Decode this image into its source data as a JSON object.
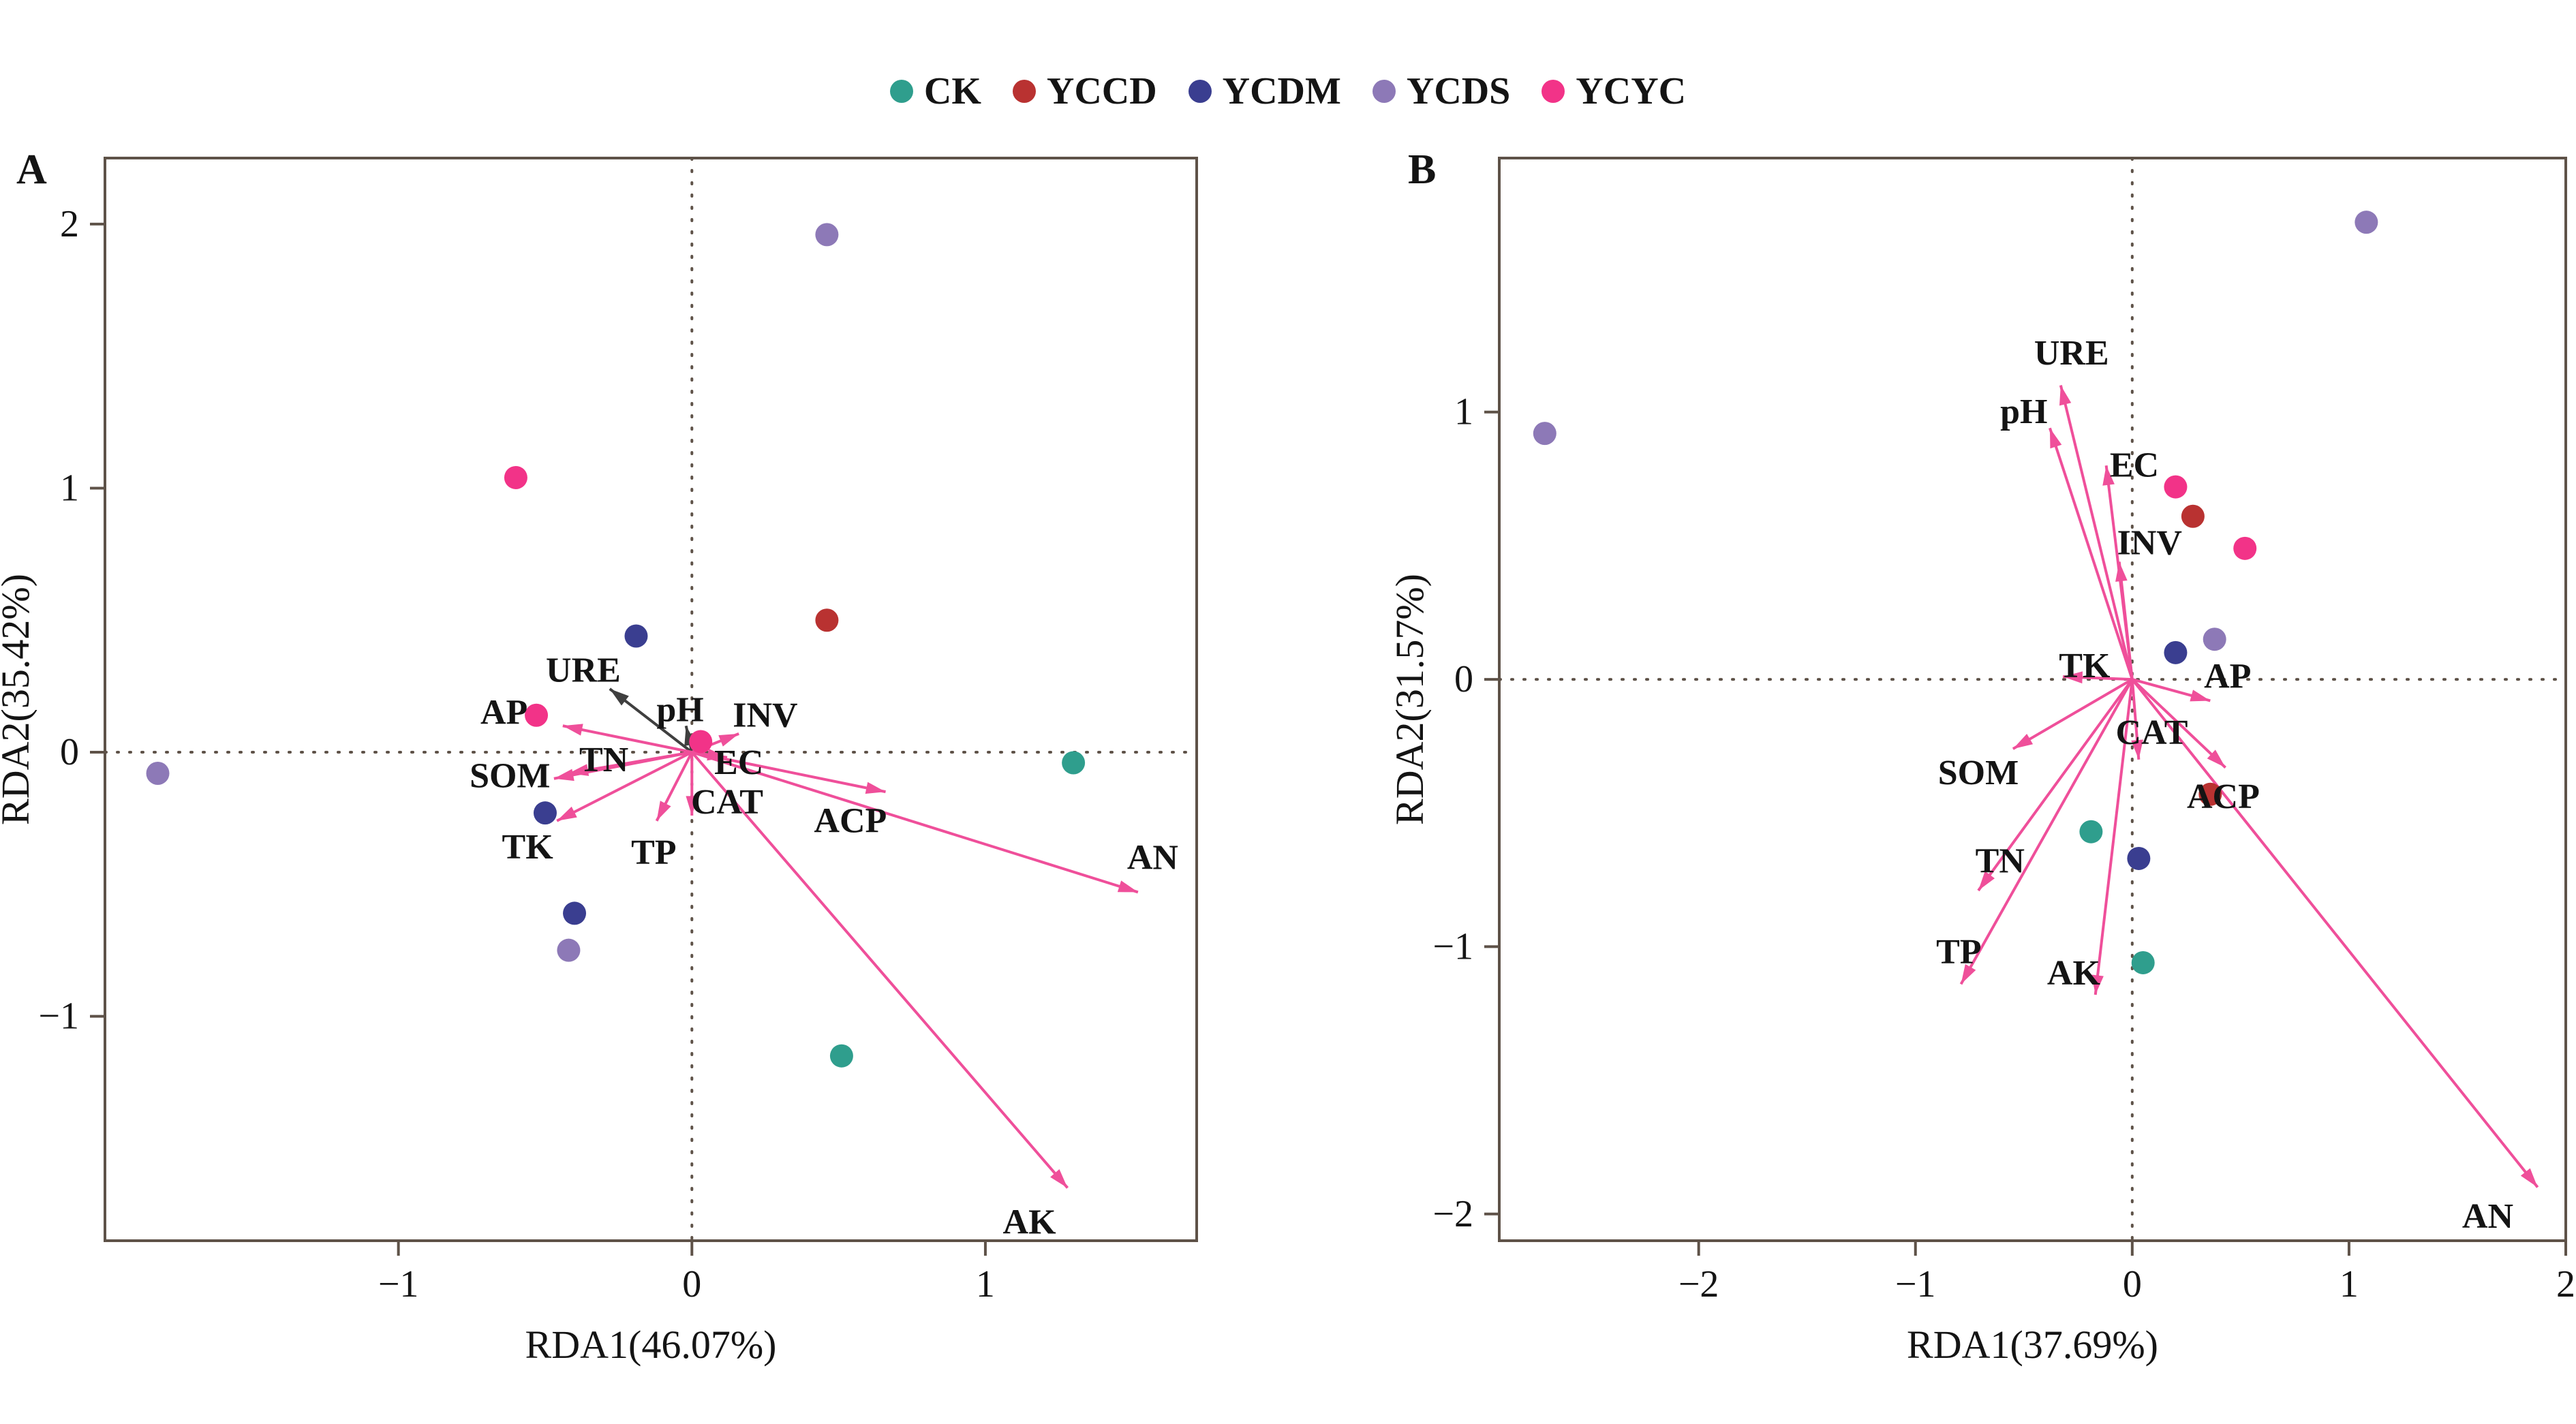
{
  "legend": {
    "items": [
      {
        "label": "CK",
        "color": "#2f9e8d"
      },
      {
        "label": "YCCD",
        "color": "#b93231"
      },
      {
        "label": "YCDM",
        "color": "#3a3e90"
      },
      {
        "label": "YCDS",
        "color": "#8d79b7"
      },
      {
        "label": "YCYC",
        "color": "#f23388"
      }
    ]
  },
  "colors": {
    "arrow_pink": "#ef4f9a",
    "arrow_dark": "#3f3f3f",
    "frame": "#5e5248",
    "text": "#141414"
  },
  "chart_data": [
    {
      "type": "scatter",
      "panel": "A",
      "xlabel": "RDA1(46.07%)",
      "ylabel": "RDA2(35.42%)",
      "xlim": [
        -2.0,
        1.72
      ],
      "ylim": [
        -1.85,
        2.25
      ],
      "xticks": [
        -1,
        0,
        1
      ],
      "yticks": [
        -1,
        0,
        1,
        2
      ],
      "grid": "zero-lines-dotted",
      "points": [
        {
          "group": "CK",
          "x": 1.3,
          "y": -0.04
        },
        {
          "group": "CK",
          "x": 0.51,
          "y": -1.15
        },
        {
          "group": "YCCD",
          "x": 0.46,
          "y": 0.5
        },
        {
          "group": "YCDM",
          "x": -0.19,
          "y": 0.44
        },
        {
          "group": "YCDM",
          "x": -0.5,
          "y": -0.23
        },
        {
          "group": "YCDM",
          "x": -0.4,
          "y": -0.61
        },
        {
          "group": "YCDS",
          "x": 0.46,
          "y": 1.96
        },
        {
          "group": "YCDS",
          "x": -1.82,
          "y": -0.08
        },
        {
          "group": "YCDS",
          "x": -0.42,
          "y": -0.75
        },
        {
          "group": "YCYC",
          "x": -0.6,
          "y": 1.04
        },
        {
          "group": "YCYC",
          "x": -0.53,
          "y": 0.14
        },
        {
          "group": "YCYC",
          "x": 0.03,
          "y": 0.04
        }
      ],
      "arrows": [
        {
          "label": "URE",
          "x": -0.28,
          "y": 0.24,
          "lx": -0.37,
          "ly": 0.31,
          "color": "dark"
        },
        {
          "label": "pH",
          "x": -0.02,
          "y": 0.1,
          "lx": -0.04,
          "ly": 0.16,
          "color": "dark"
        },
        {
          "label": "AP",
          "x": -0.44,
          "y": 0.1,
          "lx": -0.64,
          "ly": 0.15,
          "color": "pink"
        },
        {
          "label": "INV",
          "x": 0.16,
          "y": 0.07,
          "lx": 0.25,
          "ly": 0.14,
          "color": "pink"
        },
        {
          "label": "TN",
          "x": -0.42,
          "y": -0.08,
          "lx": -0.3,
          "ly": -0.03,
          "color": "pink"
        },
        {
          "label": "SOM",
          "x": -0.47,
          "y": -0.1,
          "lx": -0.62,
          "ly": -0.09,
          "color": "pink"
        },
        {
          "label": "EC",
          "x": 0.12,
          "y": -0.02,
          "lx": 0.16,
          "ly": -0.04,
          "color": "pink"
        },
        {
          "label": "CAT",
          "x": 0.0,
          "y": -0.24,
          "lx": 0.12,
          "ly": -0.19,
          "color": "pink"
        },
        {
          "label": "TK",
          "x": -0.46,
          "y": -0.26,
          "lx": -0.56,
          "ly": -0.36,
          "color": "pink"
        },
        {
          "label": "TP",
          "x": -0.12,
          "y": -0.26,
          "lx": -0.13,
          "ly": -0.38,
          "color": "pink"
        },
        {
          "label": "ACP",
          "x": 0.66,
          "y": -0.15,
          "lx": 0.54,
          "ly": -0.26,
          "color": "pink"
        },
        {
          "label": "AN",
          "x": 1.52,
          "y": -0.53,
          "lx": 1.57,
          "ly": -0.4,
          "color": "pink"
        },
        {
          "label": "AK",
          "x": 1.28,
          "y": -1.65,
          "lx": 1.15,
          "ly": -1.78,
          "color": "pink"
        }
      ]
    },
    {
      "type": "scatter",
      "panel": "B",
      "xlabel": "RDA1(37.69%)",
      "ylabel": "RDA2(31.57%)",
      "xlim": [
        -2.92,
        2.0
      ],
      "ylim": [
        -2.1,
        1.95
      ],
      "xticks": [
        -2,
        -1,
        0,
        1,
        2
      ],
      "yticks": [
        -2,
        -1,
        0,
        1
      ],
      "grid": "zero-lines-dotted",
      "points": [
        {
          "group": "CK",
          "x": -0.19,
          "y": -0.57
        },
        {
          "group": "CK",
          "x": 0.05,
          "y": -1.06
        },
        {
          "group": "YCCD",
          "x": 0.28,
          "y": 0.61
        },
        {
          "group": "YCCD",
          "x": 0.36,
          "y": -0.43
        },
        {
          "group": "YCDM",
          "x": 0.2,
          "y": 0.1
        },
        {
          "group": "YCDM",
          "x": 0.03,
          "y": -0.67
        },
        {
          "group": "YCDS",
          "x": 1.08,
          "y": 1.71
        },
        {
          "group": "YCDS",
          "x": -2.71,
          "y": 0.92
        },
        {
          "group": "YCDS",
          "x": 0.38,
          "y": 0.15
        },
        {
          "group": "YCYC",
          "x": 0.2,
          "y": 0.72
        },
        {
          "group": "YCYC",
          "x": 0.52,
          "y": 0.49
        }
      ],
      "arrows": [
        {
          "label": "URE",
          "x": -0.33,
          "y": 1.1,
          "lx": -0.28,
          "ly": 1.22,
          "color": "pink"
        },
        {
          "label": "pH",
          "x": -0.38,
          "y": 0.94,
          "lx": -0.5,
          "ly": 1.0,
          "color": "pink"
        },
        {
          "label": "EC",
          "x": -0.12,
          "y": 0.8,
          "lx": 0.01,
          "ly": 0.8,
          "color": "pink"
        },
        {
          "label": "INV",
          "x": -0.06,
          "y": 0.44,
          "lx": 0.08,
          "ly": 0.51,
          "color": "pink"
        },
        {
          "label": "TK",
          "x": -0.32,
          "y": 0.01,
          "lx": -0.22,
          "ly": 0.05,
          "color": "pink"
        },
        {
          "label": "AP",
          "x": 0.36,
          "y": -0.08,
          "lx": 0.44,
          "ly": 0.01,
          "color": "pink"
        },
        {
          "label": "CAT",
          "x": 0.03,
          "y": -0.3,
          "lx": 0.09,
          "ly": -0.2,
          "color": "pink"
        },
        {
          "label": "SOM",
          "x": -0.55,
          "y": -0.26,
          "lx": -0.71,
          "ly": -0.35,
          "color": "pink"
        },
        {
          "label": "ACP",
          "x": 0.43,
          "y": -0.33,
          "lx": 0.42,
          "ly": -0.44,
          "color": "pink"
        },
        {
          "label": "TN",
          "x": -0.71,
          "y": -0.79,
          "lx": -0.61,
          "ly": -0.68,
          "color": "pink"
        },
        {
          "label": "TP",
          "x": -0.79,
          "y": -1.14,
          "lx": -0.8,
          "ly": -1.02,
          "color": "pink"
        },
        {
          "label": "AK",
          "x": -0.17,
          "y": -1.18,
          "lx": -0.27,
          "ly": -1.1,
          "color": "pink"
        },
        {
          "label": "AN",
          "x": 1.87,
          "y": -1.9,
          "lx": 1.64,
          "ly": -2.01,
          "color": "pink"
        }
      ]
    }
  ]
}
